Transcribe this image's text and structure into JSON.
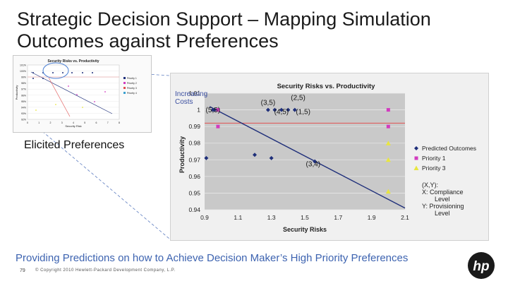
{
  "slide": {
    "title_line1": "Strategic Decision Support – Mapping Simulation",
    "title_line2": "Outcomes against Preferences",
    "elicited_label": "Elicited Preferences",
    "subtitle": "Providing Predictions on how to Achieve Decision Maker’s High Priority Preferences",
    "page_number": "79",
    "copyright": "© Copyright 2010 Hewlett-Packard Development Company, L.P.",
    "callout_line1": "Increasing",
    "callout_line2": "Costs",
    "colors": {
      "predicted": "#1f2f7a",
      "priority1": "#d23bbf",
      "priority3": "#e8e640",
      "trend": "#1f2f7a",
      "red_line": "#e05050",
      "title_text": "#1a1a1a",
      "subtitle_text": "#3d63b0"
    }
  },
  "chart_data": [
    {
      "type": "scatter",
      "title": "Security Risks vs. Productivity",
      "xlabel": "Security Risks",
      "ylabel": "Productivity",
      "xlim": [
        0.9,
        2.1
      ],
      "ylim": [
        0.94,
        1.01
      ],
      "x_ticks": [
        "0.9",
        "1.1",
        "1.3",
        "1.5",
        "1.7",
        "1.9",
        "2.1"
      ],
      "y_ticks": [
        "0.94",
        "0.95",
        "0.96",
        "0.97",
        "0.98",
        "0.99",
        "1",
        "1.01"
      ],
      "grid": true,
      "legend_position": "right",
      "series": [
        {
          "name": "Predicted Outcomes",
          "marker": "diamond",
          "points": [
            {
              "x": 0.91,
              "y": 0.971
            },
            {
              "x": 0.95,
              "y": 1.0
            },
            {
              "x": 0.96,
              "y": 1.0
            },
            {
              "x": 1.28,
              "y": 1.0
            },
            {
              "x": 1.32,
              "y": 1.0
            },
            {
              "x": 1.36,
              "y": 1.0
            },
            {
              "x": 1.44,
              "y": 1.0
            },
            {
              "x": 1.4,
              "y": 1.0
            },
            {
              "x": 1.2,
              "y": 0.973
            },
            {
              "x": 1.3,
              "y": 0.971
            },
            {
              "x": 1.56,
              "y": 0.969
            }
          ]
        },
        {
          "name": "Priority 1",
          "marker": "square",
          "points": [
            {
              "x": 0.98,
              "y": 1.0
            },
            {
              "x": 0.98,
              "y": 0.99
            },
            {
              "x": 2.0,
              "y": 1.0
            },
            {
              "x": 2.0,
              "y": 0.99
            }
          ]
        },
        {
          "name": "Priority 3",
          "marker": "triangle",
          "points": [
            {
              "x": 2.0,
              "y": 0.98
            },
            {
              "x": 2.0,
              "y": 0.97
            },
            {
              "x": 2.0,
              "y": 0.951
            }
          ]
        }
      ],
      "trend_line": [
        {
          "x": 0.93,
          "y": 1.002
        },
        {
          "x": 2.1,
          "y": 0.941
        }
      ],
      "reference_line": [
        {
          "x": 0.9,
          "y": 0.992
        },
        {
          "x": 2.1,
          "y": 0.992
        }
      ],
      "annotations": [
        {
          "text": "(3,5)",
          "x": 1.28,
          "y": 1.003
        },
        {
          "text": "(2,5)",
          "x": 1.46,
          "y": 1.006
        },
        {
          "text": "(1,5)",
          "x": 1.49,
          "y": 0.9975
        },
        {
          "text": "(4,5)",
          "x": 1.36,
          "y": 0.9975
        },
        {
          "text": "(5,5)",
          "x": 0.95,
          "y": 0.9985
        },
        {
          "text": "(3,4)",
          "x": 1.55,
          "y": 0.966
        }
      ],
      "legend_note_lines": [
        "(X,Y):",
        "X: Compliance",
        "Level",
        "Y: Provisioning",
        "Level"
      ]
    },
    {
      "type": "scatter",
      "title": "Security Risks vs. Productivity",
      "xlabel": "Security Risk",
      "ylabel": "Productivity",
      "x_ticks": [
        "0",
        "1",
        "2",
        "3",
        "4",
        "5",
        "6",
        "7",
        "8"
      ],
      "y_ticks": [
        "92%",
        "93%",
        "94%",
        "95%",
        "96%",
        "97%",
        "98%",
        "99%",
        "100%",
        "101%"
      ],
      "legend": [
        "Priority 1",
        "Priority 2",
        "Priority 3",
        "Priority 4"
      ]
    }
  ]
}
